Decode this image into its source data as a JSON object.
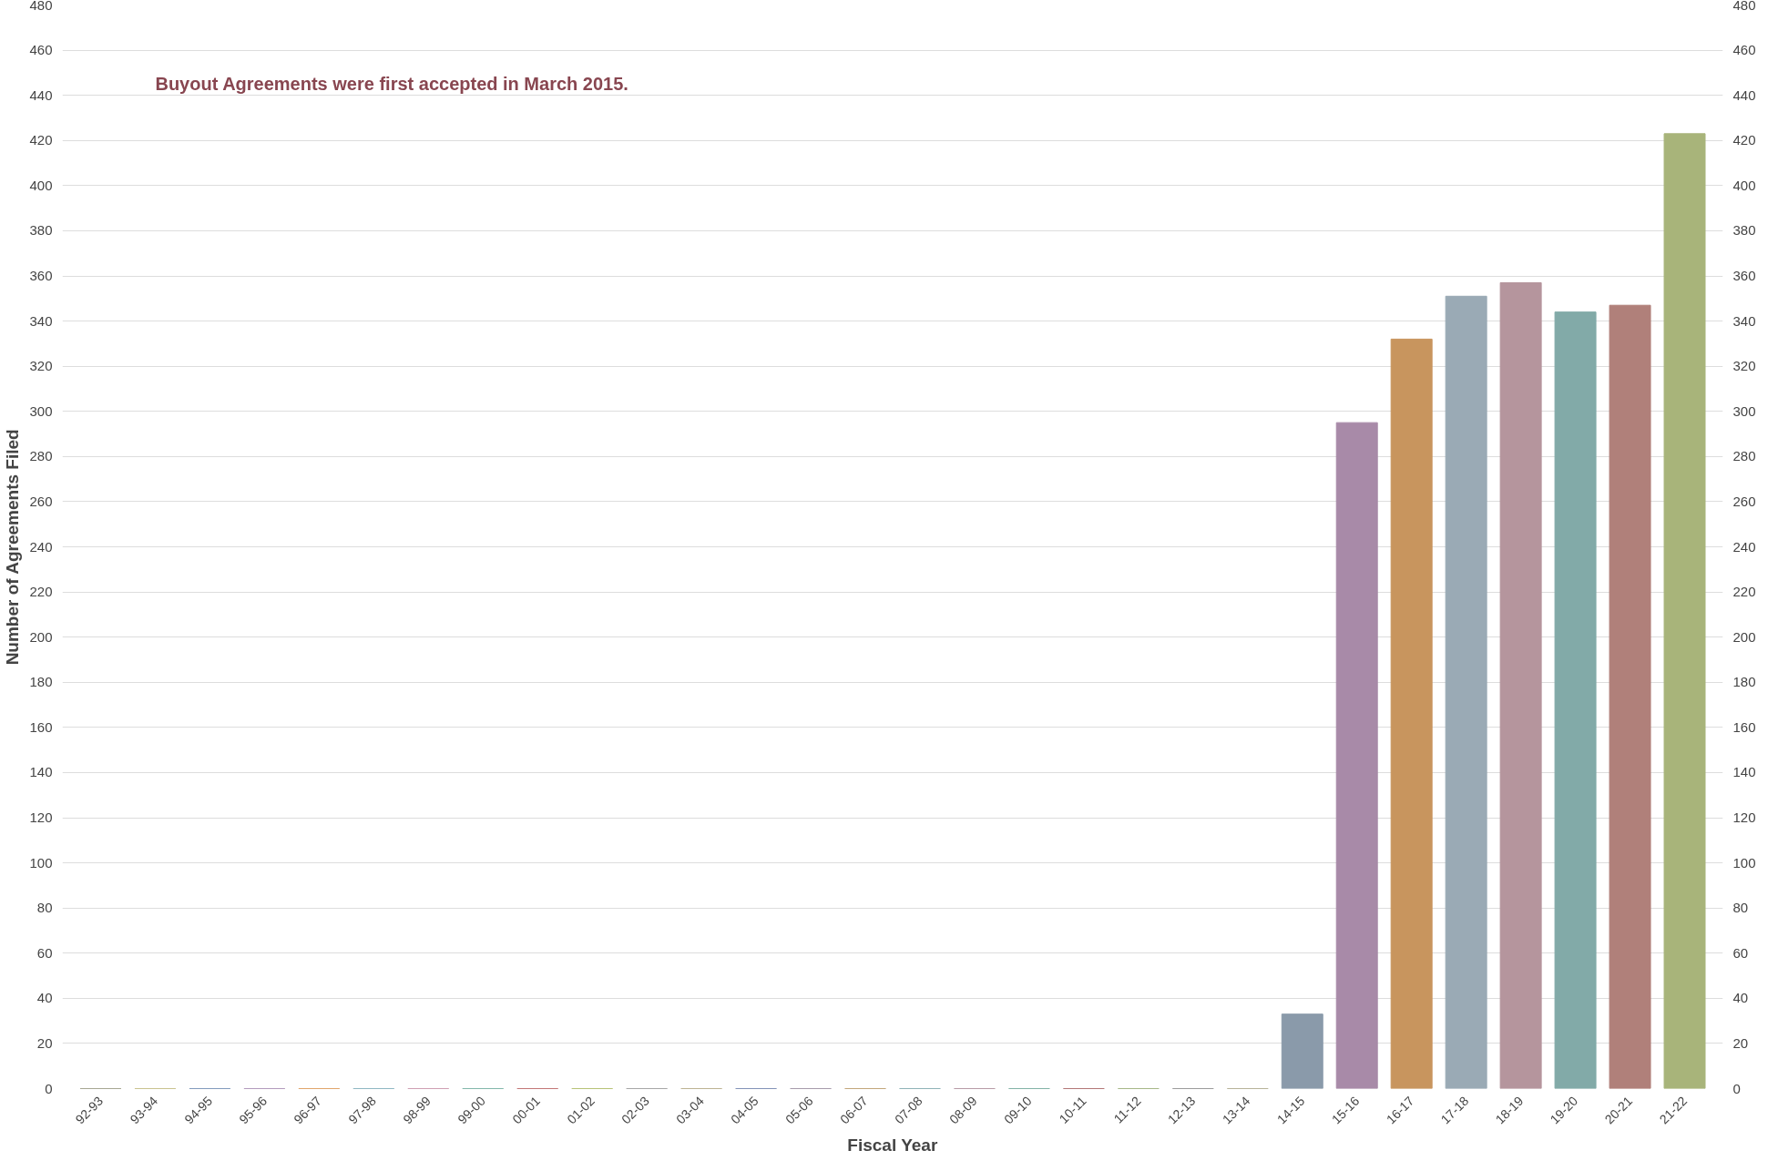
{
  "chart_data": {
    "type": "bar",
    "xlabel": "Fiscal Year",
    "ylabel": "Number of Agreements Filed",
    "categories": [
      "92-93",
      "93-94",
      "94-95",
      "95-96",
      "96-97",
      "97-98",
      "98-99",
      "99-00",
      "00-01",
      "01-02",
      "02-03",
      "03-04",
      "04-05",
      "05-06",
      "06-07",
      "07-08",
      "08-09",
      "09-10",
      "10-11",
      "11-12",
      "12-13",
      "13-14",
      "14-15",
      "15-16",
      "16-17",
      "17-18",
      "18-19",
      "19-20",
      "20-21",
      "21-22"
    ],
    "values": [
      0,
      0,
      0,
      0,
      0,
      0,
      0,
      0,
      0,
      0,
      0,
      0,
      0,
      0,
      0,
      0,
      0,
      0,
      0,
      0,
      0,
      0,
      33,
      295,
      332,
      351,
      357,
      344,
      347,
      423
    ],
    "colors": [
      "#8a8a6e",
      "#b8b06a",
      "#5a7aa8",
      "#9a7aa8",
      "#d8873a",
      "#6aa0b0",
      "#c0809a",
      "#5aa090",
      "#b04a4a",
      "#a0b04a",
      "#8a8a8a",
      "#a89a70",
      "#5a70a0",
      "#8a7a90",
      "#b08a50",
      "#6a9aa0",
      "#a07a8a",
      "#5a9a8a",
      "#9a4a4a",
      "#8aa060",
      "#7a7a7a",
      "#a09a78",
      "#8a9aaa",
      "#a88aa8",
      "#c8955e",
      "#9aaab5",
      "#b5959d",
      "#82aaa8",
      "#b0807a",
      "#a8b47a"
    ],
    "ylim": [
      0,
      480
    ],
    "yticks": [
      0,
      20,
      40,
      60,
      80,
      100,
      120,
      140,
      160,
      180,
      200,
      220,
      240,
      260,
      280,
      300,
      320,
      340,
      360,
      380,
      400,
      420,
      440,
      460,
      480
    ],
    "y2lim": [
      0,
      480
    ],
    "y2ticks": [
      0,
      20,
      40,
      60,
      80,
      100,
      120,
      140,
      160,
      180,
      200,
      220,
      240,
      260,
      280,
      300,
      320,
      340,
      360,
      380,
      400,
      420,
      440,
      460,
      480
    ],
    "grid": "y",
    "annotations": [
      "Buyout Agreements were first accepted in March 2015."
    ]
  }
}
